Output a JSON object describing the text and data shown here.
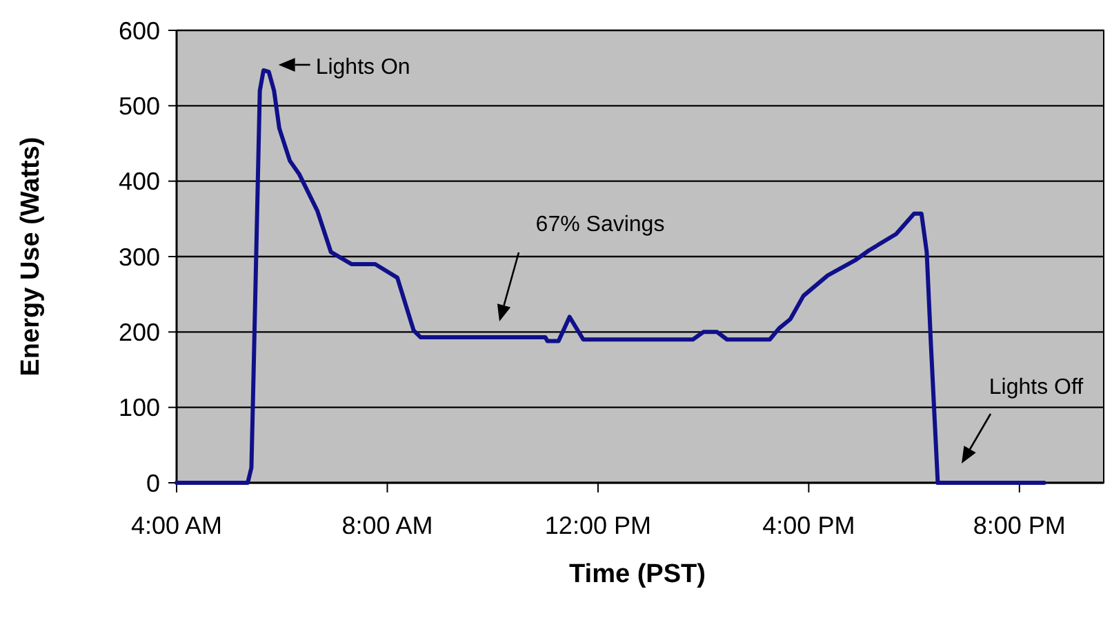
{
  "chart_data": {
    "type": "line",
    "xlabel": "Time (PST)",
    "ylabel": "Energy Use (Watts)",
    "xlim": [
      4,
      21.6
    ],
    "ylim": [
      0,
      600
    ],
    "xticks": [
      {
        "value": 4,
        "label": "4:00 AM"
      },
      {
        "value": 8,
        "label": "8:00 AM"
      },
      {
        "value": 12,
        "label": "12:00 PM"
      },
      {
        "value": 16,
        "label": "4:00 PM"
      },
      {
        "value": 20,
        "label": "8:00 PM"
      }
    ],
    "yticks": [
      0,
      100,
      200,
      300,
      400,
      500,
      600
    ],
    "grid": "y",
    "marker": "none",
    "line_style": "solid",
    "series": [
      {
        "color": "#10108a",
        "x": [
          4,
          5.35,
          5.42,
          5.45,
          5.52,
          5.58,
          5.65,
          5.75,
          5.85,
          5.95,
          6.15,
          6.33,
          6.67,
          6.93,
          7.32,
          7.77,
          8.19,
          8.5,
          8.63,
          11.0,
          11.04,
          11.25,
          11.46,
          11.72,
          13.8,
          14.0,
          14.26,
          14.45,
          15.26,
          15.44,
          15.65,
          15.9,
          16.36,
          16.88,
          17.14,
          17.66,
          18.0,
          18.14,
          18.24,
          18.32,
          18.45,
          18.66,
          20.47
        ],
        "values": [
          0,
          0,
          20,
          110,
          330,
          520,
          547,
          545,
          520,
          470,
          427,
          409,
          361,
          306,
          290,
          290,
          272,
          202,
          193,
          193,
          188,
          188,
          220,
          190,
          190,
          200,
          200,
          190,
          190,
          205,
          217,
          248,
          275,
          295,
          308,
          330,
          357,
          357,
          306,
          183,
          0,
          0,
          0
        ]
      }
    ],
    "annotations": [
      {
        "text": "Lights On",
        "x": 5.75,
        "y": 547
      },
      "67% Savings",
      "Lights Off"
    ]
  }
}
